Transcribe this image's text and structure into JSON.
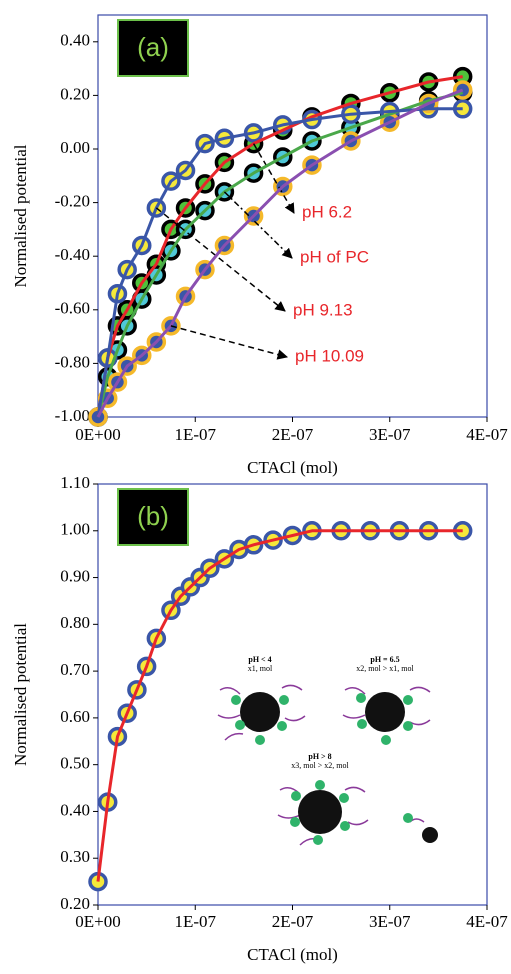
{
  "chart_data": [
    {
      "type": "scatter",
      "panel_label": "(a)",
      "x_label": "CTACl (mol)",
      "y_label": "Normalised potential",
      "xlim": [
        0,
        4e-07
      ],
      "ylim": [
        -1.0,
        0.5
      ],
      "xticks": [
        {
          "value": 0,
          "label": "0E+00"
        },
        {
          "value": 1e-07,
          "label": "1E-07"
        },
        {
          "value": 2e-07,
          "label": "2E-07"
        },
        {
          "value": 3e-07,
          "label": "3E-07"
        },
        {
          "value": 4e-07,
          "label": "4E-07"
        }
      ],
      "yticks": [
        {
          "value": -1.0,
          "label": "-1.00"
        },
        {
          "value": -0.8,
          "label": "-0.80"
        },
        {
          "value": -0.6,
          "label": "-0.60"
        },
        {
          "value": -0.4,
          "label": "-0.40"
        },
        {
          "value": -0.2,
          "label": "-0.20"
        },
        {
          "value": 0.0,
          "label": "0.00"
        },
        {
          "value": 0.2,
          "label": "0.20"
        },
        {
          "value": 0.4,
          "label": "0.40"
        }
      ],
      "x": [
        0,
        1e-08,
        2e-08,
        3e-08,
        4.5e-08,
        6e-08,
        7.5e-08,
        9e-08,
        1.1e-07,
        1.3e-07,
        1.6e-07,
        1.9e-07,
        2.2e-07,
        2.6e-07,
        3e-07,
        3.4e-07,
        3.75e-07
      ],
      "series": [
        {
          "name": "pH 6.2",
          "color": "#4fc23a",
          "edge_color": "#000000",
          "line_color": "#e8262b",
          "values": [
            -1.0,
            -0.78,
            -0.66,
            -0.6,
            -0.5,
            -0.43,
            -0.3,
            -0.22,
            -0.13,
            -0.05,
            0.02,
            0.07,
            0.12,
            0.17,
            0.21,
            0.25,
            0.27
          ]
        },
        {
          "name": "pH of PC",
          "color": "#4fc8d8",
          "edge_color": "#000000",
          "line_color": "#4aa84a",
          "values": [
            -1.0,
            -0.85,
            -0.75,
            -0.66,
            -0.56,
            -0.47,
            -0.38,
            -0.3,
            -0.23,
            -0.16,
            -0.09,
            -0.03,
            0.03,
            0.08,
            0.13,
            0.18,
            0.21
          ]
        },
        {
          "name": "pH 9.13",
          "color": "#f5e83a",
          "edge_color": "#3a56a8",
          "line_color": "#3a56a8",
          "values": [
            -1.0,
            -0.78,
            -0.54,
            -0.45,
            -0.36,
            -0.22,
            -0.12,
            -0.08,
            0.02,
            0.04,
            0.06,
            0.09,
            0.11,
            0.13,
            0.14,
            0.15,
            0.15
          ]
        },
        {
          "name": "pH 10.09",
          "color": "#3a56a8",
          "edge_color": "#f5b92a",
          "line_color": "#8a4fb0",
          "values": [
            -1.0,
            -0.93,
            -0.87,
            -0.81,
            -0.77,
            -0.72,
            -0.66,
            -0.55,
            -0.45,
            -0.36,
            -0.25,
            -0.14,
            -0.06,
            0.03,
            0.1,
            0.17,
            0.22
          ]
        }
      ]
    },
    {
      "type": "scatter",
      "panel_label": "(b)",
      "x_label": "CTACl (mol)",
      "y_label": "Normalised potential",
      "xlim": [
        0,
        4e-07
      ],
      "ylim": [
        0.2,
        1.1
      ],
      "xticks": [
        {
          "value": 0,
          "label": "0E+00"
        },
        {
          "value": 1e-07,
          "label": "1E-07"
        },
        {
          "value": 2e-07,
          "label": "2E-07"
        },
        {
          "value": 3e-07,
          "label": "3E-07"
        },
        {
          "value": 4e-07,
          "label": "4E-07"
        }
      ],
      "yticks": [
        {
          "value": 0.2,
          "label": "0.20"
        },
        {
          "value": 0.3,
          "label": "0.30"
        },
        {
          "value": 0.4,
          "label": "0.40"
        },
        {
          "value": 0.5,
          "label": "0.50"
        },
        {
          "value": 0.6,
          "label": "0.60"
        },
        {
          "value": 0.7,
          "label": "0.70"
        },
        {
          "value": 0.8,
          "label": "0.80"
        },
        {
          "value": 0.9,
          "label": "0.90"
        },
        {
          "value": 1.0,
          "label": "1.00"
        },
        {
          "value": 1.1,
          "label": "1.10"
        }
      ],
      "x": [
        0,
        1e-08,
        2e-08,
        3e-08,
        4e-08,
        5e-08,
        6e-08,
        7.5e-08,
        8.5e-08,
        9.5e-08,
        1.05e-07,
        1.15e-07,
        1.3e-07,
        1.45e-07,
        1.6e-07,
        1.8e-07,
        2e-07,
        2.2e-07,
        2.5e-07,
        2.8e-07,
        3.1e-07,
        3.4e-07,
        3.75e-07
      ],
      "series": [
        {
          "color": "#f5e83a",
          "edge_color": "#3a56a8",
          "line_color": "#e8262b",
          "values": [
            0.25,
            0.42,
            0.56,
            0.61,
            0.66,
            0.71,
            0.77,
            0.83,
            0.86,
            0.88,
            0.9,
            0.92,
            0.94,
            0.96,
            0.97,
            0.98,
            0.99,
            1.0,
            1.0,
            1.0,
            1.0,
            1.0,
            1.0
          ]
        }
      ],
      "inset_labels": [
        "pH < 4",
        "x1, mol",
        "pH = 6.5",
        "x2, mol > x1, mol",
        "pH > 8",
        "x3, mol > x2, mol"
      ]
    }
  ]
}
